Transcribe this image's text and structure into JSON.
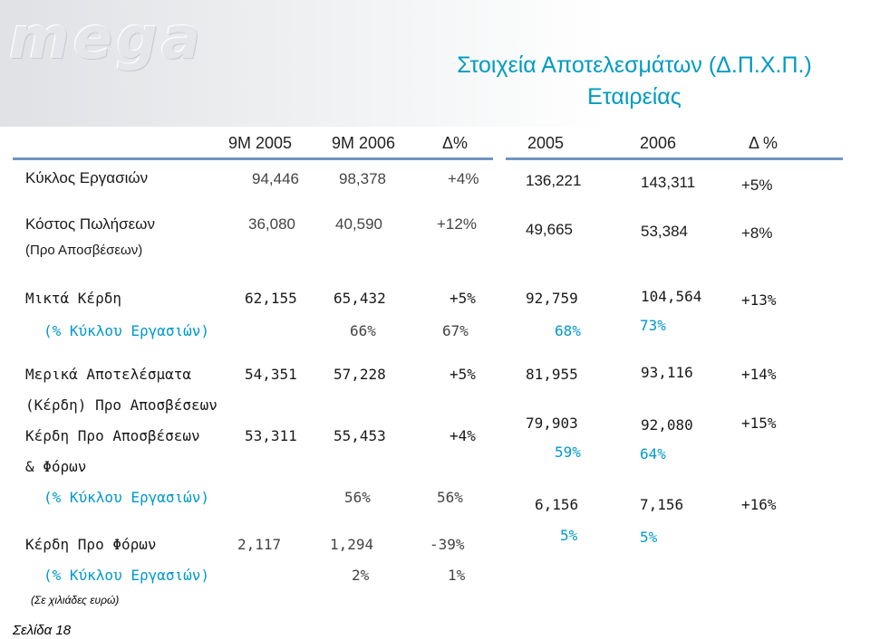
{
  "logo_text": "mega",
  "title_line1": "Στοιχεία Αποτελεσμάτων (Δ.Π.Χ.Π.)",
  "title_line2": "Εταιρείας",
  "headers": {
    "h1": "9M 2005",
    "h2": "9M 2006",
    "h3": "Δ%",
    "h4": "2005",
    "h5": "2006",
    "h6": "Δ %"
  },
  "rows": {
    "sales_label": "Κύκλος Εργασιών",
    "sales_9m05": "94,446",
    "sales_9m06": "98,378",
    "sales_d9m": "+4%",
    "sales_05": "136,221",
    "sales_06": "143,311",
    "sales_dy": "+5%",
    "cost_label": "Κόστος Πωλήσεων",
    "cost_sub": "(Προ Αποσβέσεων)",
    "cost_9m05": "36,080",
    "cost_9m06": "40,590",
    "cost_d9m": "+12%",
    "cost_05": "49,665",
    "cost_06": "53,384",
    "cost_dy": "+8%",
    "gross_label": "Μικτά Κέρδη",
    "gross_9m05": "62,155",
    "gross_9m06": "65,432",
    "gross_d9m": "+5%",
    "gross_05": "92,759",
    "gross_06": "104,564",
    "gross_dy": "+13%",
    "gross_pct_label": "(% Κύκλου Εργασιών)",
    "gross_pct_9m06": "66%",
    "gross_pct_d9m": "67%",
    "gross_pct_05": "68%",
    "gross_pct_06": "73%",
    "partial_label": "Μερικά Αποτελέσματα",
    "partial_9m05": "54,351",
    "partial_9m06": "57,228",
    "partial_d9m": "+5%",
    "partial_05": "81,955",
    "partial_06": "93,116",
    "partial_dy": "+14%",
    "partial_sub": "(Κέρδη) Προ Αποσβέσεων",
    "ebitda_label": "Κέρδη Προ Αποσβέσεων",
    "ebitda_label2": "& Φόρων",
    "ebitda_9m05": "53,311",
    "ebitda_9m06": "55,453",
    "ebitda_d9m": "+4%",
    "ebitda_05": "79,903",
    "ebitda_06": "92,080",
    "ebitda_dy": "+15%",
    "ebitda_pct_05": "59%",
    "ebitda_pct_06": "64%",
    "ebitda_pct_label": "(% Κύκλου Εργασιών)",
    "ebitda_pct_9m06": "56%",
    "ebitda_pct_d9m": "56%",
    "y_val_05": "6,156",
    "y_val_06": "7,156",
    "y_val_dy": "+16%",
    "y_pct_05": "5%",
    "y_pct_06": "5%",
    "ebt_label": "Κέρδη Προ Φόρων",
    "ebt_9m05": "2,117",
    "ebt_9m06": "1,294",
    "ebt_d9m": "-39%",
    "ebt_pct_label": "(% Κύκλου Εργασιών)",
    "ebt_pct_9m06": "2%",
    "ebt_pct_d9m": "1%"
  },
  "footnote": "(Σε χιλιάδες ευρώ)",
  "page_label": "Σελίδα 18",
  "colors": {
    "title": "#009bc1",
    "rule": "#6f95c4",
    "percent": "#0099cc"
  }
}
